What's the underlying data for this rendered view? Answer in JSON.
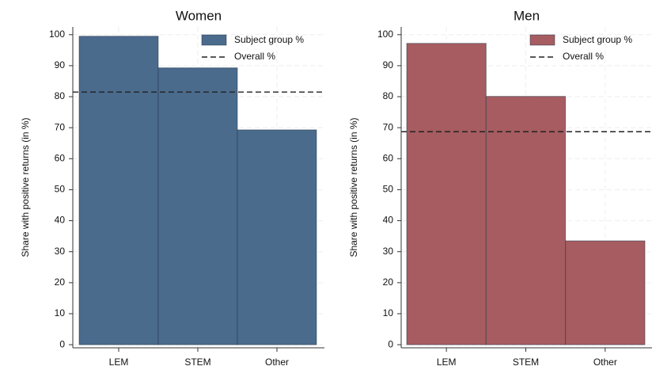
{
  "chart_data": [
    {
      "type": "bar",
      "title": "Women",
      "y_label": "Share with positive returns (in %)",
      "categories": [
        "LEM",
        "STEM",
        "Other"
      ],
      "series": [
        {
          "name": "Subject group %",
          "color": "#4a6b8c",
          "values": [
            99.5,
            89.3,
            69.3
          ]
        }
      ],
      "reference": {
        "name": "Overall %",
        "value": 81.5
      },
      "ylim": [
        -1,
        102.5
      ],
      "yticks": [
        0,
        10,
        20,
        30,
        40,
        50,
        60,
        70,
        80,
        90,
        100
      ],
      "grid": true
    },
    {
      "type": "bar",
      "title": "Men",
      "y_label": "Share with positive returns (in %)",
      "categories": [
        "LEM",
        "STEM",
        "Other"
      ],
      "series": [
        {
          "name": "Subject group %",
          "color": "#a65c60",
          "values": [
            97.2,
            80.1,
            33.5
          ]
        }
      ],
      "reference": {
        "name": "Overall %",
        "value": 68.7
      },
      "ylim": [
        -1,
        102.5
      ],
      "yticks": [
        0,
        10,
        20,
        30,
        40,
        50,
        60,
        70,
        80,
        90,
        100
      ],
      "grid": true
    }
  ]
}
